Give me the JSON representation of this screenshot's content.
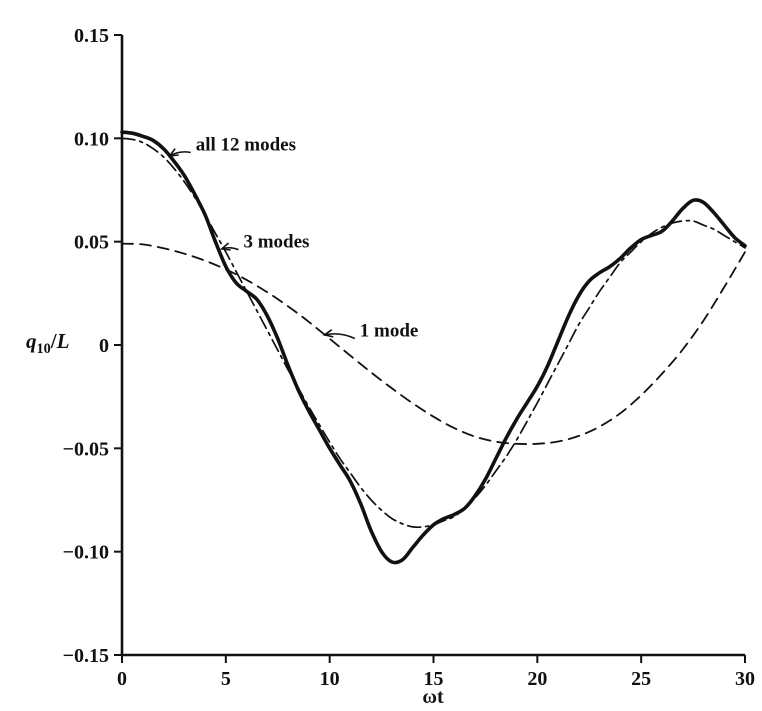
{
  "ink_color": "#111111",
  "background_color": "#ffffff",
  "chart_data": {
    "type": "line",
    "title": "",
    "xlabel": "ωt",
    "ylabel": {
      "base": "q",
      "sub": "10",
      "slash": "/",
      "tail": "L"
    },
    "xlim": [
      0,
      30
    ],
    "ylim": [
      -0.15,
      0.15
    ],
    "grid": false,
    "legend_position": "none",
    "xticks": [
      0,
      5,
      10,
      15,
      20,
      25,
      30
    ],
    "xtick_labels": [
      "0",
      "5",
      "10",
      "15",
      "20",
      "25",
      "30"
    ],
    "yticks": [
      0.15,
      0.1,
      0.05,
      0,
      -0.05,
      -0.1,
      -0.15
    ],
    "ytick_labels": [
      "0.15",
      "0.10",
      "0.05",
      "0",
      "−0.05",
      "−0.10",
      "−0.15"
    ],
    "series": [
      {
        "name": "all 12 modes",
        "style": "solid-thick",
        "points": [
          [
            0,
            0.103
          ],
          [
            0.5,
            0.1025
          ],
          [
            1,
            0.101
          ],
          [
            1.5,
            0.099
          ],
          [
            2,
            0.095
          ],
          [
            2.5,
            0.089
          ],
          [
            3,
            0.082
          ],
          [
            3.5,
            0.073
          ],
          [
            4,
            0.063
          ],
          [
            4.5,
            0.05
          ],
          [
            5,
            0.038
          ],
          [
            5.5,
            0.03
          ],
          [
            6,
            0.026
          ],
          [
            6.5,
            0.022
          ],
          [
            7,
            0.014
          ],
          [
            7.5,
            0.003
          ],
          [
            8,
            -0.01
          ],
          [
            8.5,
            -0.022
          ],
          [
            9,
            -0.032
          ],
          [
            9.5,
            -0.041
          ],
          [
            10,
            -0.05
          ],
          [
            10.5,
            -0.058
          ],
          [
            11,
            -0.066
          ],
          [
            11.5,
            -0.077
          ],
          [
            12,
            -0.09
          ],
          [
            12.5,
            -0.1
          ],
          [
            13,
            -0.105
          ],
          [
            13.5,
            -0.104
          ],
          [
            14,
            -0.098
          ],
          [
            14.5,
            -0.092
          ],
          [
            15,
            -0.087
          ],
          [
            15.5,
            -0.084
          ],
          [
            16,
            -0.082
          ],
          [
            16.5,
            -0.079
          ],
          [
            17,
            -0.073
          ],
          [
            17.5,
            -0.065
          ],
          [
            18,
            -0.055
          ],
          [
            18.5,
            -0.045
          ],
          [
            19,
            -0.036
          ],
          [
            19.5,
            -0.028
          ],
          [
            20,
            -0.02
          ],
          [
            20.5,
            -0.01
          ],
          [
            21,
            0.002
          ],
          [
            21.5,
            0.014
          ],
          [
            22,
            0.024
          ],
          [
            22.5,
            0.031
          ],
          [
            23,
            0.035
          ],
          [
            23.5,
            0.038
          ],
          [
            24,
            0.042
          ],
          [
            24.5,
            0.047
          ],
          [
            25,
            0.051
          ],
          [
            25.5,
            0.053
          ],
          [
            26,
            0.055
          ],
          [
            26.5,
            0.06
          ],
          [
            27,
            0.066
          ],
          [
            27.5,
            0.07
          ],
          [
            28,
            0.069
          ],
          [
            28.5,
            0.064
          ],
          [
            29,
            0.058
          ],
          [
            29.5,
            0.052
          ],
          [
            30,
            0.048
          ]
        ]
      },
      {
        "name": "3 modes",
        "style": "dash-dot-thin",
        "points": [
          [
            0,
            0.1
          ],
          [
            0.5,
            0.0995
          ],
          [
            1,
            0.098
          ],
          [
            1.5,
            0.095
          ],
          [
            2,
            0.091
          ],
          [
            2.5,
            0.0855
          ],
          [
            3,
            0.079
          ],
          [
            3.5,
            0.0715
          ],
          [
            4,
            0.063
          ],
          [
            4.5,
            0.054
          ],
          [
            5,
            0.045
          ],
          [
            5.5,
            0.0355
          ],
          [
            6,
            0.026
          ],
          [
            6.5,
            0.0165
          ],
          [
            7,
            0.007
          ],
          [
            7.5,
            -0.0025
          ],
          [
            8,
            -0.012
          ],
          [
            8.5,
            -0.021
          ],
          [
            9,
            -0.03
          ],
          [
            9.5,
            -0.0385
          ],
          [
            10,
            -0.047
          ],
          [
            10.5,
            -0.055
          ],
          [
            11,
            -0.062
          ],
          [
            11.5,
            -0.069
          ],
          [
            12,
            -0.075
          ],
          [
            12.5,
            -0.08
          ],
          [
            13,
            -0.084
          ],
          [
            13.5,
            -0.0865
          ],
          [
            14,
            -0.088
          ],
          [
            14.5,
            -0.088
          ],
          [
            15,
            -0.087
          ],
          [
            15.5,
            -0.085
          ],
          [
            16,
            -0.083
          ],
          [
            16.5,
            -0.079
          ],
          [
            17,
            -0.074
          ],
          [
            17.5,
            -0.068
          ],
          [
            18,
            -0.061
          ],
          [
            18.5,
            -0.054
          ],
          [
            19,
            -0.046
          ],
          [
            19.5,
            -0.037
          ],
          [
            20,
            -0.028
          ],
          [
            20.5,
            -0.0185
          ],
          [
            21,
            -0.009
          ],
          [
            21.5,
            0.0005
          ],
          [
            22,
            0.01
          ],
          [
            22.5,
            0.018
          ],
          [
            23,
            0.026
          ],
          [
            23.5,
            0.033
          ],
          [
            24,
            0.04
          ],
          [
            24.5,
            0.045
          ],
          [
            25,
            0.05
          ],
          [
            25.5,
            0.054
          ],
          [
            26,
            0.057
          ],
          [
            26.5,
            0.059
          ],
          [
            27,
            0.06
          ],
          [
            27.5,
            0.06
          ],
          [
            28,
            0.058
          ],
          [
            28.5,
            0.056
          ],
          [
            29,
            0.053
          ],
          [
            29.5,
            0.05
          ],
          [
            30,
            0.047
          ]
        ]
      },
      {
        "name": "1 mode",
        "style": "dashed",
        "points": [
          [
            0,
            0.049
          ],
          [
            1,
            0.0487
          ],
          [
            2,
            0.0468
          ],
          [
            3,
            0.0442
          ],
          [
            4,
            0.0408
          ],
          [
            5,
            0.0366
          ],
          [
            6,
            0.0315
          ],
          [
            7,
            0.0255
          ],
          [
            8,
            0.0187
          ],
          [
            9,
            0.0112
          ],
          [
            10,
            0.003
          ],
          [
            11,
            -0.0052
          ],
          [
            12,
            -0.0133
          ],
          [
            13,
            -0.021
          ],
          [
            14,
            -0.0282
          ],
          [
            15,
            -0.0347
          ],
          [
            16,
            -0.0402
          ],
          [
            17,
            -0.0443
          ],
          [
            18,
            -0.0468
          ],
          [
            19,
            -0.0478
          ],
          [
            20,
            -0.0478
          ],
          [
            21,
            -0.0467
          ],
          [
            22,
            -0.044
          ],
          [
            23,
            -0.0395
          ],
          [
            24,
            -0.033
          ],
          [
            25,
            -0.0243
          ],
          [
            26,
            -0.014
          ],
          [
            27,
            -0.0022
          ],
          [
            28,
            0.0118
          ],
          [
            29,
            0.028
          ],
          [
            30,
            0.045
          ]
        ]
      }
    ],
    "annotations": [
      {
        "text": "all 12 modes",
        "label_xy": [
          3.55,
          0.0975
        ],
        "target_xy": [
          2.3,
          0.0915
        ],
        "bend": 4
      },
      {
        "text": "3 modes",
        "label_xy": [
          5.85,
          0.0505
        ],
        "target_xy": [
          4.8,
          0.0465
        ],
        "bend": 3
      },
      {
        "text": "1 mode",
        "label_xy": [
          11.45,
          0.0075
        ],
        "target_xy": [
          9.75,
          0.0049
        ],
        "bend": 5
      }
    ]
  }
}
